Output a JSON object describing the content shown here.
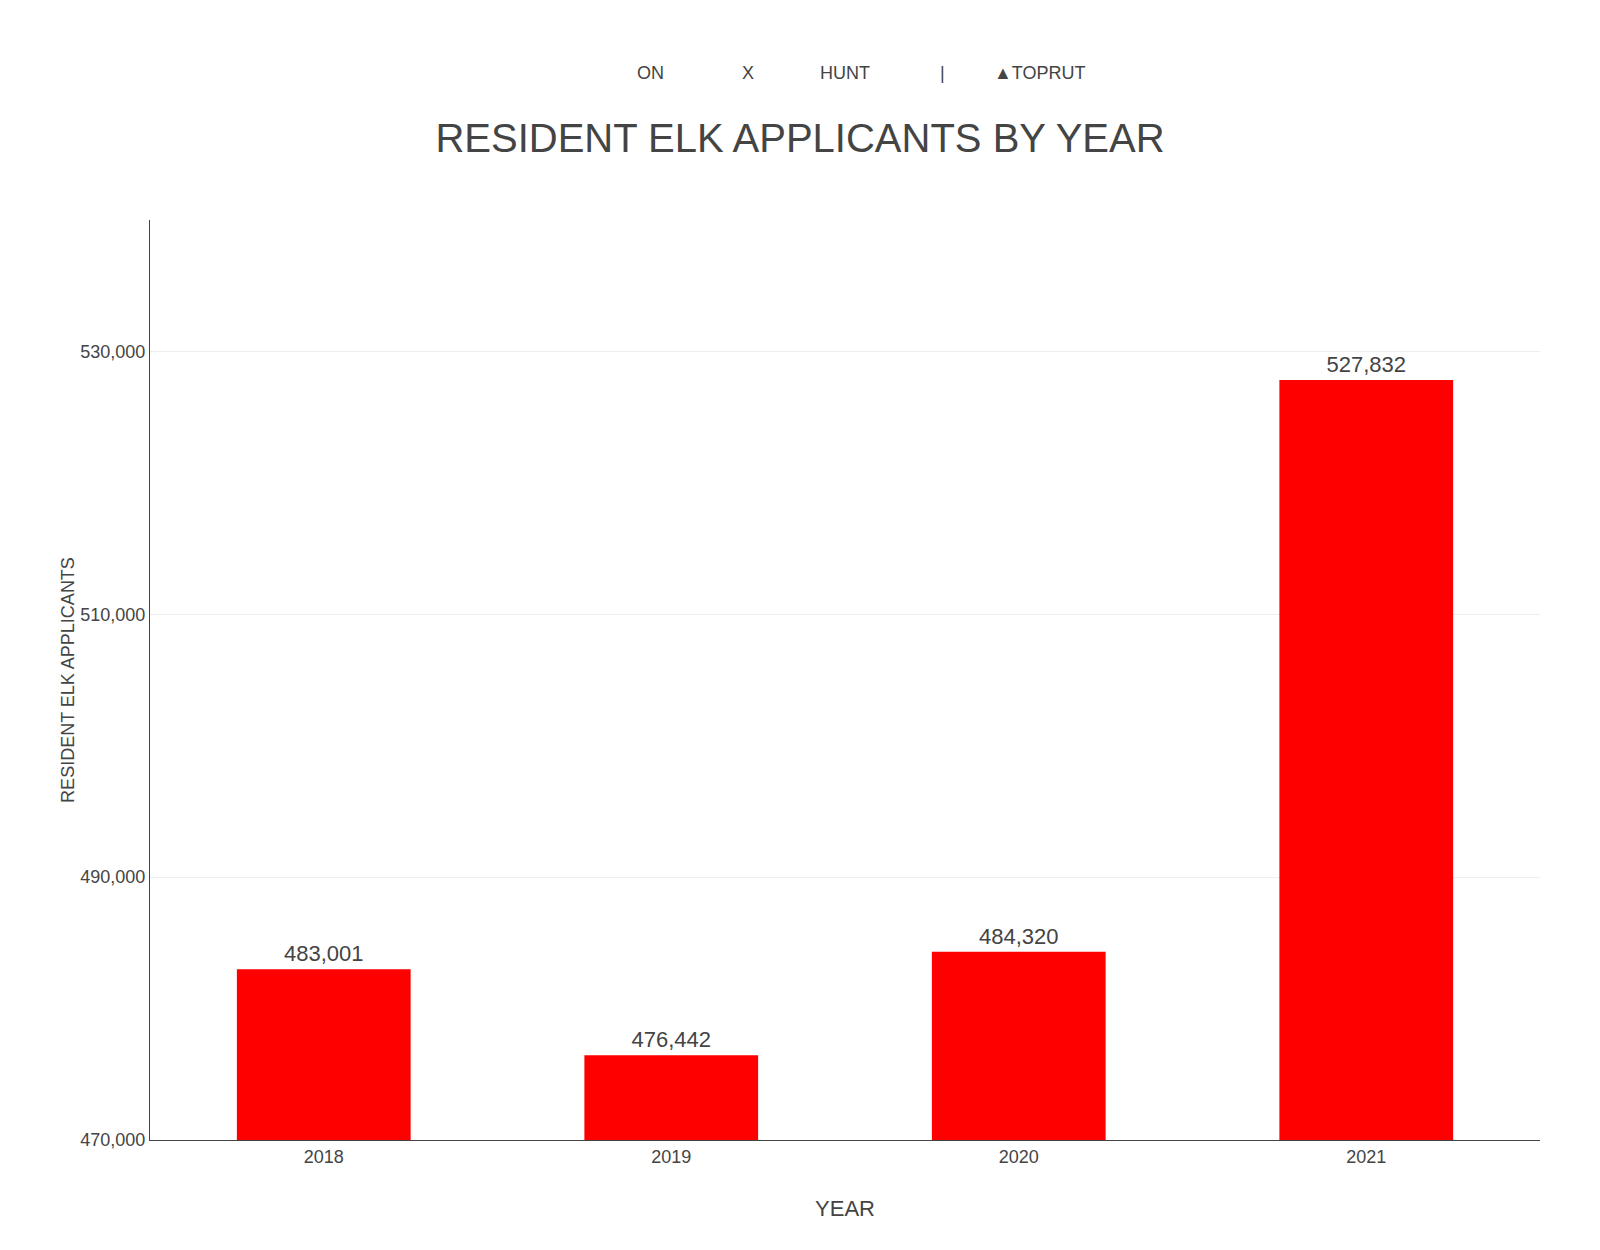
{
  "chart_data": {
    "type": "bar",
    "title": "RESIDENT ELK APPLICANTS BY YEAR",
    "xlabel": "YEAR",
    "ylabel": "RESIDENT ELK APPLICANTS",
    "categories": [
      "2018",
      "2019",
      "2020",
      "2021"
    ],
    "values": [
      483001,
      476442,
      484320,
      527832
    ],
    "value_labels": [
      "483,001",
      "476,442",
      "484,320",
      "527,832"
    ],
    "color": "#FF0000",
    "ylim": [
      470000,
      540000
    ],
    "yticks": [
      {
        "value": 470000,
        "label": "470,000"
      },
      {
        "value": 490000,
        "label": "490,000"
      },
      {
        "value": 510000,
        "label": "510,000"
      },
      {
        "value": 530000,
        "label": "530,000"
      }
    ],
    "grid": true,
    "data_labels": true,
    "annotations": [
      "ON",
      "X",
      "HUNT",
      "|",
      "▲TOPRUT"
    ]
  }
}
